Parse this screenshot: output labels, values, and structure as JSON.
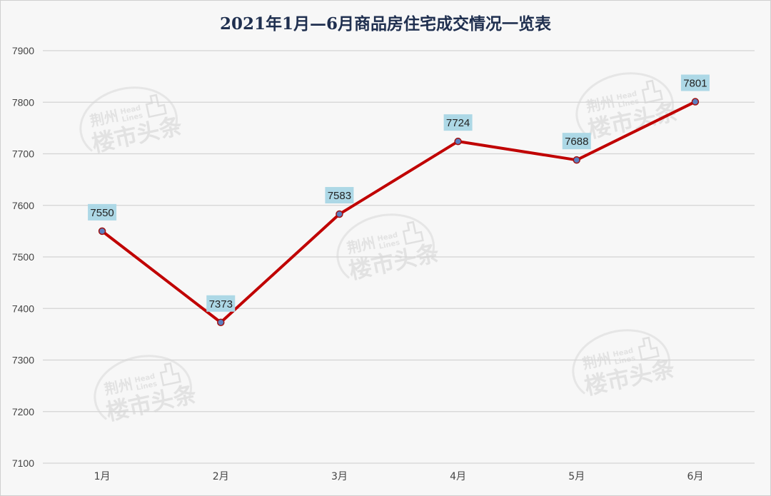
{
  "chart_data": {
    "type": "line",
    "title": "2021年1月—6月商品房住宅成交情况一览表",
    "categories": [
      "1月",
      "2月",
      "3月",
      "4月",
      "5月",
      "6月"
    ],
    "series": [
      {
        "values": [
          7550,
          7373,
          7583,
          7724,
          7688,
          7801
        ]
      }
    ],
    "ylim": [
      7100,
      7900
    ],
    "yticks": [
      "7900",
      "7800",
      "7700",
      "7600",
      "7500",
      "7400",
      "7300",
      "7200",
      "7100"
    ],
    "grid": true,
    "legend": "none",
    "xlabel": "",
    "ylabel": "",
    "colors": {
      "line": "#c00000",
      "marker_fill": "#5b7fc0",
      "marker_stroke": "#a01010",
      "label_bg": "#add8e6",
      "grid": "#d4d4d4"
    }
  },
  "watermark": {
    "cn_top": "荆州",
    "en_top": "Head",
    "en_bottom": "Lines",
    "cn_main": "楼市头条"
  }
}
